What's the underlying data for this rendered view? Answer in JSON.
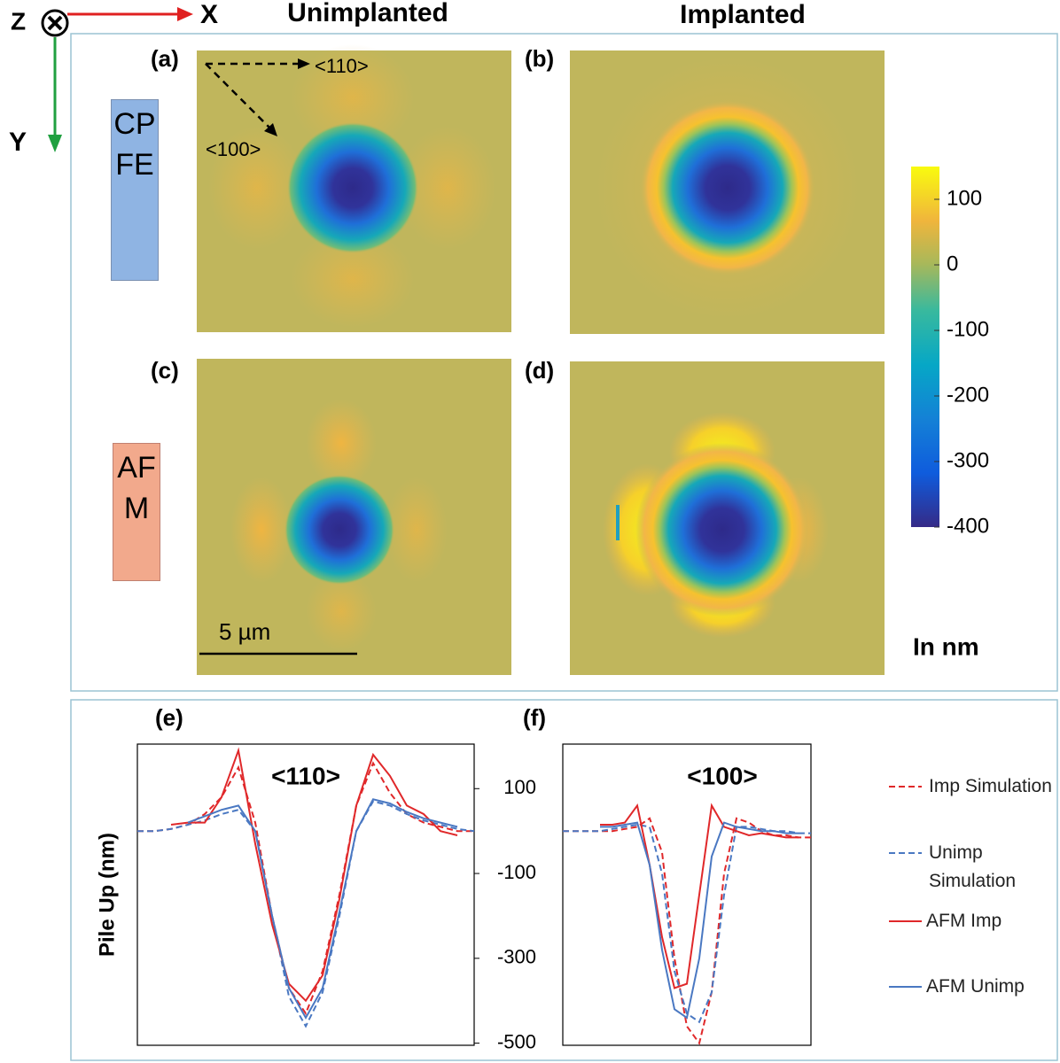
{
  "axes": {
    "z": "Z",
    "x": "X",
    "y": "Y"
  },
  "column_titles": [
    "Unimplanted",
    "Implanted"
  ],
  "row_labels": [
    "CPFE",
    "AFM"
  ],
  "panels": [
    "(a)",
    "(b)",
    "(c)",
    "(d)"
  ],
  "directions": [
    "<110>",
    "<100>"
  ],
  "scale_bar": "5 µm",
  "colorbar": {
    "lim": [
      -400,
      150
    ],
    "ticks": [
      100,
      0,
      -100,
      -200,
      -300,
      -400
    ],
    "unit": "In nm"
  },
  "chart_data": [
    {
      "type": "line",
      "panel": "(e)",
      "title": "<110>",
      "ylabel": "Pile Up (nm)",
      "ylim": [
        -505,
        205
      ],
      "yticks": [
        100,
        -100,
        -300,
        -500
      ],
      "series": [
        {
          "name": "Imp Simulation",
          "color": "#e0282a",
          "dash": true,
          "values": [
            0,
            0,
            5,
            15,
            40,
            80,
            150,
            20,
            -200,
            -370,
            -430,
            -330,
            -150,
            60,
            160,
            90,
            40,
            20,
            10,
            0,
            0
          ]
        },
        {
          "name": "Unimp Simulation",
          "color": "#4a78c2",
          "dash": true,
          "values": [
            0,
            0,
            5,
            15,
            25,
            40,
            50,
            0,
            -200,
            -390,
            -460,
            -380,
            -200,
            0,
            70,
            60,
            40,
            25,
            15,
            5,
            0
          ]
        },
        {
          "name": "AFM Imp",
          "color": "#e0282a",
          "dash": false,
          "values": [
            null,
            null,
            15,
            20,
            20,
            80,
            190,
            -30,
            -220,
            -360,
            -400,
            -340,
            -160,
            60,
            180,
            130,
            60,
            40,
            0,
            -10,
            null
          ]
        },
        {
          "name": "AFM Unimp",
          "color": "#4a78c2",
          "dash": false,
          "values": [
            null,
            null,
            null,
            20,
            35,
            50,
            60,
            0,
            -200,
            -370,
            -440,
            -370,
            -190,
            0,
            75,
            65,
            45,
            30,
            20,
            10,
            null
          ]
        }
      ]
    },
    {
      "type": "line",
      "panel": "(f)",
      "title": "<100>",
      "ylim": [
        -505,
        205
      ],
      "series": [
        {
          "name": "Imp Simulation",
          "color": "#e0282a",
          "dash": true,
          "values": [
            0,
            0,
            0,
            0,
            0,
            5,
            10,
            30,
            -50,
            -300,
            -460,
            -500,
            -380,
            -100,
            30,
            20,
            0,
            -10,
            -10,
            -15,
            -15
          ]
        },
        {
          "name": "Unimp Simulation",
          "color": "#4a78c2",
          "dash": true,
          "values": [
            0,
            0,
            0,
            0,
            5,
            10,
            15,
            10,
            -100,
            -330,
            -430,
            -450,
            -380,
            -150,
            10,
            10,
            5,
            0,
            0,
            -5,
            -5
          ]
        },
        {
          "name": "AFM Imp",
          "color": "#e0282a",
          "dash": false,
          "values": [
            null,
            null,
            null,
            15,
            15,
            20,
            60,
            -80,
            -250,
            -370,
            -360,
            -150,
            60,
            10,
            0,
            -10,
            -5,
            -10,
            -15,
            -15,
            null
          ]
        },
        {
          "name": "AFM Unimp",
          "color": "#4a78c2",
          "dash": false,
          "values": [
            null,
            null,
            null,
            10,
            10,
            15,
            20,
            -80,
            -280,
            -420,
            -440,
            -300,
            -60,
            20,
            10,
            5,
            0,
            0,
            -5,
            -5,
            null
          ]
        }
      ]
    }
  ]
}
